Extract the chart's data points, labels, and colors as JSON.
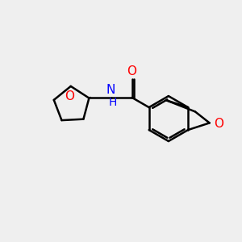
{
  "bg_color": "#efefef",
  "black": "#000000",
  "red": "#ff0000",
  "blue": "#0000ff",
  "bond_lw": 1.8,
  "font_size": 11,
  "fig_size": [
    3.0,
    3.0
  ],
  "dpi": 100,
  "xlim": [
    0,
    10
  ],
  "ylim": [
    0,
    10
  ]
}
